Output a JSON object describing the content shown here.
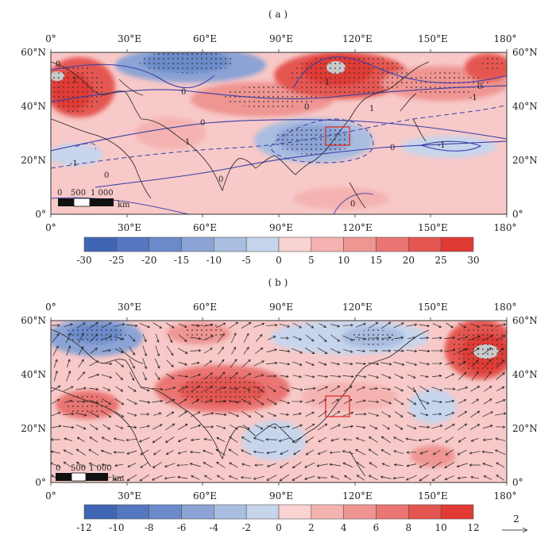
{
  "panels": [
    {
      "label": "( a )",
      "top_ticks": [
        "0°",
        "30°E",
        "60°E",
        "90°E",
        "120°E",
        "150°E",
        "180°"
      ],
      "bottom_ticks": [
        "0°",
        "30°E",
        "60°E",
        "90°E",
        "120°E",
        "150°E",
        "180°"
      ],
      "left_ticks": [
        "60°N",
        "40°N",
        "20°N",
        "0°"
      ],
      "right_ticks": [
        "60°N",
        "40°N",
        "20°N",
        "0°"
      ],
      "scale_bar": {
        "labels": [
          "0",
          "500",
          "1 000"
        ],
        "unit": "km"
      },
      "contour_labels": [
        "0",
        "0",
        "0",
        "0",
        "0",
        "0",
        "0",
        "0",
        "1",
        "-1",
        "-1",
        "1",
        "-1",
        "1",
        "1",
        "0"
      ],
      "colorbar": {
        "ticks": [
          "-30",
          "-25",
          "-20",
          "-15",
          "-10",
          "-5",
          "0",
          "5",
          "10",
          "15",
          "20",
          "25",
          "30"
        ],
        "colors": [
          "#3f65b4",
          "#5577bf",
          "#6b8ac9",
          "#8ba3d5",
          "#a9bde1",
          "#c7d5ec",
          "#f9d3d2",
          "#f4b3b1",
          "#ef9592",
          "#ea7572",
          "#e55651",
          "#e13a35"
        ]
      }
    },
    {
      "label": "( b )",
      "top_ticks": [
        "0°",
        "30°E",
        "60°E",
        "90°E",
        "120°E",
        "150°E",
        "180°"
      ],
      "bottom_ticks": [
        "0°",
        "30°E",
        "60°E",
        "90°E",
        "120°E",
        "150°E",
        "180°"
      ],
      "left_ticks": [
        "60°N",
        "40°N",
        "20°N",
        "0°"
      ],
      "right_ticks": [
        "60°N",
        "40°N",
        "20°N",
        "0°"
      ],
      "scale_bar": {
        "labels": [
          "0",
          "500",
          "1 000"
        ],
        "unit": "km"
      },
      "colorbar": {
        "ticks": [
          "-12",
          "-10",
          "-8",
          "-6",
          "-4",
          "-2",
          "0",
          "2",
          "4",
          "6",
          "8",
          "10",
          "12"
        ],
        "colors": [
          "#3f65b4",
          "#5577bf",
          "#6b8ac9",
          "#8ba3d5",
          "#a9bde1",
          "#c7d5ec",
          "#f9d3d2",
          "#f4b3b1",
          "#ef9592",
          "#ea7572",
          "#e55651",
          "#e13a35"
        ]
      },
      "vector_reference": "2"
    }
  ],
  "colors": {
    "box": "#e0302a",
    "contour": "#3b3fa8",
    "coast": "#222222",
    "stipple": "#333333"
  }
}
